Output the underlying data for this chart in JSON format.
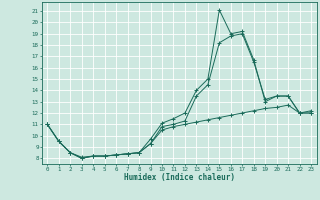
{
  "title": "",
  "xlabel": "Humidex (Indice chaleur)",
  "bg_color": "#cde8e0",
  "grid_color": "#ffffff",
  "line_color": "#1a6b5a",
  "x_ticks": [
    0,
    1,
    2,
    3,
    4,
    5,
    6,
    7,
    8,
    9,
    10,
    11,
    12,
    13,
    14,
    15,
    16,
    17,
    18,
    19,
    20,
    21,
    22,
    23
  ],
  "y_ticks": [
    8,
    9,
    10,
    11,
    12,
    13,
    14,
    15,
    16,
    17,
    18,
    19,
    20,
    21
  ],
  "ylim": [
    7.5,
    21.8
  ],
  "xlim": [
    -0.5,
    23.5
  ],
  "line1_y": [
    11.0,
    9.5,
    8.5,
    8.0,
    8.2,
    8.2,
    8.3,
    8.4,
    8.5,
    9.7,
    11.1,
    11.5,
    12.0,
    14.0,
    15.0,
    21.1,
    19.0,
    19.2,
    16.7,
    13.0,
    13.5,
    13.5,
    12.0,
    12.2
  ],
  "line2_y": [
    11.0,
    9.5,
    8.5,
    8.1,
    8.2,
    8.2,
    8.3,
    8.4,
    8.5,
    9.3,
    10.8,
    11.0,
    11.3,
    13.5,
    14.5,
    18.2,
    18.8,
    19.0,
    16.5,
    13.2,
    13.5,
    13.5,
    12.0,
    12.0
  ],
  "line3_y": [
    11.0,
    9.5,
    8.5,
    8.0,
    8.2,
    8.2,
    8.3,
    8.4,
    8.5,
    9.3,
    10.5,
    10.8,
    11.0,
    11.2,
    11.4,
    11.6,
    11.8,
    12.0,
    12.2,
    12.4,
    12.5,
    12.7,
    12.0,
    12.0
  ]
}
